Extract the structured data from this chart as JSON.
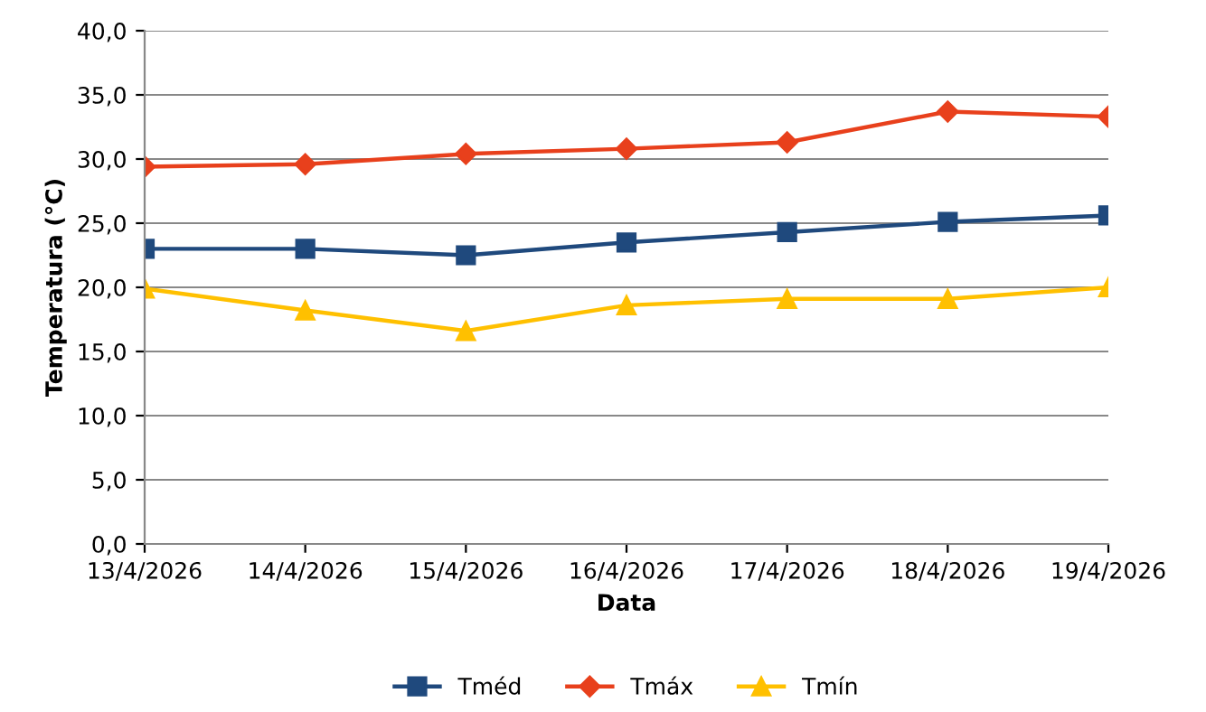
{
  "chart_data": {
    "type": "line",
    "xlabel": "Data",
    "ylabel": "Temperatura (°C)",
    "categories": [
      "13/4/2026",
      "14/4/2026",
      "15/4/2026",
      "16/4/2026",
      "17/4/2026",
      "18/4/2026",
      "19/4/2026"
    ],
    "series": [
      {
        "name": "Tméd",
        "color": "#1f497d",
        "marker": "square",
        "values": [
          23.0,
          23.0,
          22.5,
          23.5,
          24.3,
          25.1,
          25.6
        ]
      },
      {
        "name": "Tmáx",
        "color": "#e8401c",
        "marker": "diamond",
        "values": [
          29.4,
          29.6,
          30.4,
          30.8,
          31.3,
          33.7,
          33.3
        ]
      },
      {
        "name": "Tmín",
        "color": "#ffc000",
        "marker": "triangle",
        "values": [
          19.9,
          18.2,
          16.6,
          18.6,
          19.1,
          19.1,
          20.0
        ]
      }
    ],
    "ylim": [
      0,
      40
    ],
    "yticks": [
      {
        "value": 0,
        "label": "0,0"
      },
      {
        "value": 5,
        "label": "5,0"
      },
      {
        "value": 10,
        "label": "10,0"
      },
      {
        "value": 15,
        "label": "15,0"
      },
      {
        "value": 20,
        "label": "20,0"
      },
      {
        "value": 25,
        "label": "25,0"
      },
      {
        "value": 30,
        "label": "30,0"
      },
      {
        "value": 35,
        "label": "35,0"
      },
      {
        "value": 40,
        "label": "40,0"
      }
    ],
    "grid": "y",
    "legend": "bottom",
    "line_style": "solid"
  }
}
